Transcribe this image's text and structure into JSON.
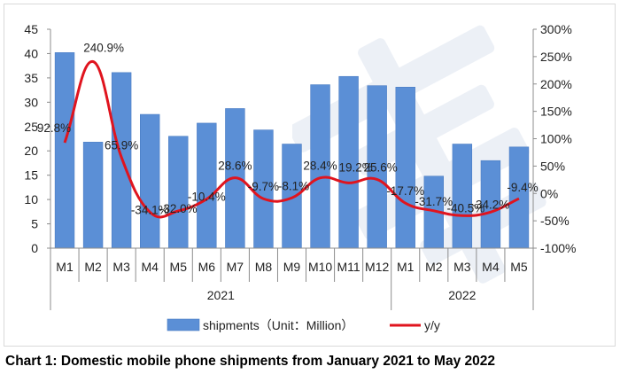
{
  "caption": "Chart 1: Domestic mobile phone shipments from January 2021 to May 2022",
  "chart_data": {
    "type": "bar",
    "title": "",
    "xlabel": "",
    "ylabel": "",
    "categories": [
      "M1",
      "M2",
      "M3",
      "M4",
      "M5",
      "M6",
      "M7",
      "M8",
      "M9",
      "M10",
      "M11",
      "M12",
      "M1",
      "M2",
      "M3",
      "M4",
      "M5"
    ],
    "year_groups": [
      {
        "label": "2021",
        "count": 12
      },
      {
        "label": "2022",
        "count": 5
      }
    ],
    "series": [
      {
        "name": "shipments（Unit：Million）",
        "type": "bar",
        "axis": "left",
        "values": [
          40.2,
          21.8,
          36.1,
          27.5,
          23.0,
          25.7,
          28.7,
          24.3,
          21.4,
          33.6,
          35.3,
          33.4,
          33.1,
          14.8,
          21.4,
          18.0,
          20.8
        ]
      },
      {
        "name": "y/y",
        "type": "line",
        "axis": "right",
        "values": [
          92.8,
          240.9,
          65.9,
          -34.1,
          -32.0,
          -10.4,
          28.6,
          -9.7,
          -8.1,
          28.4,
          19.2,
          25.6,
          -17.7,
          -31.7,
          -40.5,
          -34.2,
          -9.4
        ],
        "labels": [
          "92.8%",
          "240.9%",
          "65.9%",
          "-34.1%",
          "-32.0%",
          "-10.4%",
          "28.6%",
          "-9.7%",
          "-8.1%",
          "28.4%",
          "19.2%",
          "25.6%",
          "-17.7%",
          "-31.7%",
          "-40.5%",
          "-34.2%",
          "-9.4%"
        ]
      }
    ],
    "left_axis": {
      "range": [
        0,
        45
      ],
      "ticks": [
        "0",
        "5",
        "10",
        "15",
        "20",
        "25",
        "30",
        "35",
        "40",
        "45"
      ]
    },
    "right_axis": {
      "range": [
        -100,
        300
      ],
      "ticks": [
        "-100%",
        "-50%",
        "0%",
        "50%",
        "100%",
        "150%",
        "200%",
        "250%",
        "300%"
      ]
    },
    "legend_position": "bottom",
    "grid": false,
    "colors": {
      "bar": "#5b8fd6",
      "bar_edge": "#4a7cc3",
      "line": "#e0141e",
      "axis": "#8c8c8c"
    }
  }
}
